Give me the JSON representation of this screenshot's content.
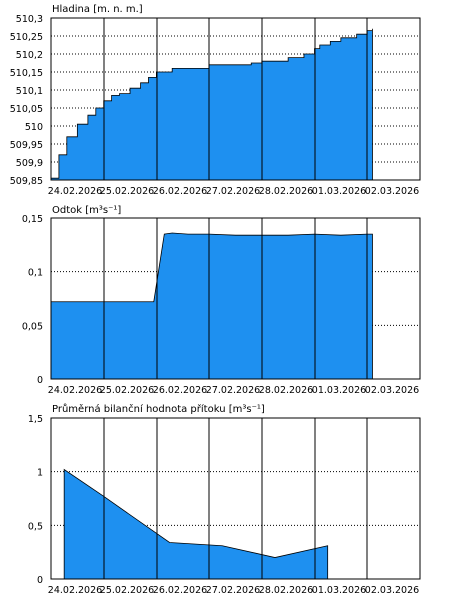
{
  "chart_data": [
    {
      "type": "area",
      "title": "Hladina [m. n. m.]",
      "x_tick_labels": [
        "24.02.2026",
        "25.02.2026",
        "26.02.2026",
        "27.02.2026",
        "28.02.2026",
        "01.03.2026",
        "02.03.2026"
      ],
      "y_tick_labels": [
        "509,85",
        "509,9",
        "509,95",
        "510",
        "510,05",
        "510,1",
        "510,15",
        "510,2",
        "510,25",
        "510,3"
      ],
      "ylim": [
        509.85,
        510.3
      ],
      "y_ticks": [
        509.85,
        509.9,
        509.95,
        510,
        510.05,
        510.1,
        510.15,
        510.2,
        510.25,
        510.3
      ],
      "grid": true,
      "x_unit": "days since 24.02.2026",
      "series": [
        {
          "x": [
            0,
            0.15,
            0.3,
            0.5,
            0.7,
            0.85,
            1.0,
            1.15,
            1.3,
            1.5,
            1.7,
            1.85,
            2.0,
            2.3,
            2.5,
            3.0,
            3.5,
            3.8,
            4.0,
            4.5,
            4.8,
            5.0,
            5.1,
            5.3,
            5.5,
            5.8,
            6.0,
            6.1
          ],
          "y": [
            509.855,
            509.92,
            509.97,
            510.005,
            510.03,
            510.05,
            510.07,
            510.085,
            510.09,
            510.105,
            510.12,
            510.135,
            510.15,
            510.16,
            510.16,
            510.17,
            510.17,
            510.175,
            510.18,
            510.19,
            510.2,
            510.215,
            510.225,
            510.235,
            510.245,
            510.255,
            510.265,
            510.27
          ]
        }
      ]
    },
    {
      "type": "area",
      "title": "Odtok [m³s⁻¹]",
      "x_tick_labels": [
        "24.02.2026",
        "25.02.2026",
        "26.02.2026",
        "27.02.2026",
        "28.02.2026",
        "01.03.2026",
        "02.03.2026"
      ],
      "y_tick_labels": [
        "0",
        "0,05",
        "0,1",
        "0,15"
      ],
      "ylim": [
        0,
        0.15
      ],
      "y_ticks": [
        0,
        0.05,
        0.1,
        0.15
      ],
      "grid": true,
      "x_unit": "days since 24.02.2026",
      "series": [
        {
          "x": [
            0,
            0.5,
            1.0,
            1.5,
            1.95,
            2.15,
            2.3,
            2.6,
            3.0,
            3.5,
            4.0,
            4.5,
            5.0,
            5.5,
            6.0,
            6.1
          ],
          "y": [
            0.072,
            0.072,
            0.072,
            0.072,
            0.072,
            0.135,
            0.136,
            0.135,
            0.135,
            0.134,
            0.134,
            0.134,
            0.135,
            0.134,
            0.135,
            0.135
          ]
        }
      ]
    },
    {
      "type": "area",
      "title": "Průměrná bilanční hodnota přítoku [m³s⁻¹]",
      "x_tick_labels": [
        "24.02.2026",
        "25.02.2026",
        "26.02.2026",
        "27.02.2026",
        "28.02.2026",
        "01.03.2026",
        "02.03.2026"
      ],
      "y_tick_labels": [
        "0",
        "0,5",
        "1",
        "1,5"
      ],
      "ylim": [
        0,
        1.5
      ],
      "y_ticks": [
        0,
        0.5,
        1,
        1.5
      ],
      "grid": true,
      "x_unit": "days since 24.02.2026",
      "series": [
        {
          "x": [
            0.25,
            1.0,
            2.25,
            3.25,
            4.25,
            5.25
          ],
          "y": [
            1.02,
            0.77,
            0.34,
            0.31,
            0.2,
            0.31
          ]
        }
      ]
    }
  ]
}
